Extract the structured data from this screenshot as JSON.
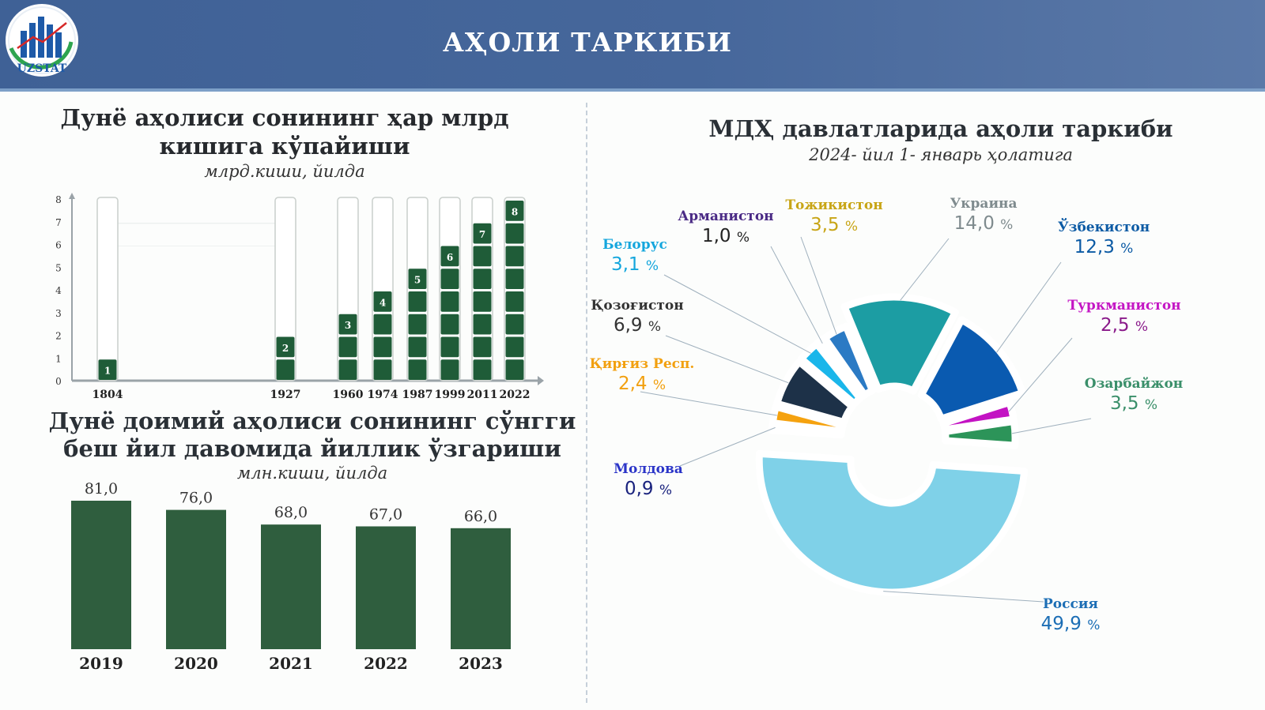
{
  "header": {
    "title": "АҲОЛИ ТАРКИБИ",
    "logo_text": "UZSTAT"
  },
  "colors": {
    "header": "#46679b",
    "bar_green": "#2f5e3e",
    "tower_green": "#1f5c38"
  },
  "chart_data": [
    {
      "type": "bar",
      "title": "Дунё аҳолиси сонининг ҳар млрд кишига кўпайиши",
      "title_lines": [
        "Дунё аҳолиси сонининг ҳар млрд",
        "кишига кўпайиши"
      ],
      "subtitle": "млрд.киши, йилда",
      "categories": [
        "1804",
        "1927",
        "1960",
        "1974",
        "1987",
        "1999",
        "2011",
        "2022"
      ],
      "values": [
        1,
        2,
        3,
        4,
        5,
        6,
        7,
        8
      ],
      "y_ticks": [
        "0",
        "1",
        "2",
        "3",
        "4",
        "5",
        "6",
        "7",
        "8"
      ],
      "ylim": [
        0,
        8
      ],
      "grid": false
    },
    {
      "type": "bar",
      "title": "Дунё доимий аҳолиси сонининг сўнгги беш йил давомида йиллик ўзгариши",
      "title_lines": [
        "Дунё доимий аҳолиси сонининг сўнгги",
        "беш йил давомида йиллик ўзгариши"
      ],
      "subtitle": "млн.киши, йилда",
      "categories": [
        "2019",
        "2020",
        "2021",
        "2022",
        "2023"
      ],
      "values": [
        81.0,
        76.0,
        68.0,
        67.0,
        66.0
      ],
      "data_labels": [
        "81,0",
        "76,0",
        "68,0",
        "67,0",
        "66,0"
      ],
      "ylim": [
        0,
        81
      ],
      "grid": false
    },
    {
      "type": "pie",
      "title": "МДҲ давлатларида аҳоли таркиби",
      "subtitle": "2024- йил 1- январь ҳолатига",
      "unit": "%",
      "slices": [
        {
          "name": "Ўзбекистон",
          "value": 12.3,
          "label": "12,3",
          "color": "#0a5ab0"
        },
        {
          "name": "Туркманистон",
          "value": 2.5,
          "label": "2,5",
          "color": "#c313c3"
        },
        {
          "name": "Озарбайжон",
          "value": 3.5,
          "label": "3,5",
          "color": "#2c9459"
        },
        {
          "name": "Россия",
          "value": 49.9,
          "label": "49,9",
          "color": "#7fd1e8"
        },
        {
          "name": "Молдова",
          "value": 0.9,
          "label": "0,9",
          "color": "#2f3ad8"
        },
        {
          "name": "Қирғиз Респ.",
          "value": 2.4,
          "label": "2,4",
          "color": "#f5a20f"
        },
        {
          "name": "Қозоғистон",
          "value": 6.9,
          "label": "6,9",
          "color": "#1d3148"
        },
        {
          "name": "Белорус",
          "value": 3.1,
          "label": "3,1",
          "color": "#1ab6ea"
        },
        {
          "name": "Арманистон",
          "value": 1.0,
          "label": "1,0",
          "color": "#5b2a93"
        },
        {
          "name": "Тожикистон",
          "value": 3.5,
          "label": "3,5",
          "color": "#2b7ac4"
        },
        {
          "name": "Украина",
          "value": 14.0,
          "label": "14,0",
          "color": "#1c9da3"
        }
      ]
    }
  ]
}
